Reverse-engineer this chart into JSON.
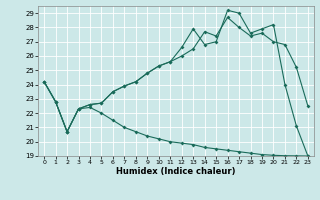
{
  "xlabel": "Humidex (Indice chaleur)",
  "background_color": "#cce8e8",
  "grid_color": "#ffffff",
  "line_color": "#1a6b5a",
  "xlim": [
    -0.5,
    23.5
  ],
  "ylim": [
    19,
    29.5
  ],
  "yticks": [
    19,
    20,
    21,
    22,
    23,
    24,
    25,
    26,
    27,
    28,
    29
  ],
  "xticks": [
    0,
    1,
    2,
    3,
    4,
    5,
    6,
    7,
    8,
    9,
    10,
    11,
    12,
    13,
    14,
    15,
    16,
    17,
    18,
    19,
    20,
    21,
    22,
    23
  ],
  "line1": [
    24.2,
    22.8,
    20.7,
    22.3,
    22.6,
    22.7,
    23.5,
    23.9,
    24.2,
    24.8,
    25.3,
    25.6,
    26.6,
    27.9,
    26.8,
    27.0,
    29.2,
    29.0,
    27.6,
    27.9,
    28.2,
    24.0,
    21.1,
    19.0
  ],
  "line2": [
    24.2,
    22.8,
    20.7,
    22.3,
    22.6,
    22.7,
    23.5,
    23.9,
    24.2,
    24.8,
    25.3,
    25.6,
    26.0,
    26.5,
    27.7,
    27.4,
    28.7,
    28.0,
    27.4,
    27.6,
    27.0,
    26.8,
    25.2,
    22.5
  ],
  "line3": [
    24.2,
    22.8,
    20.7,
    22.3,
    22.4,
    22.0,
    21.5,
    21.0,
    20.7,
    20.4,
    20.2,
    20.0,
    19.9,
    19.8,
    19.6,
    19.5,
    19.4,
    19.3,
    19.2,
    19.1,
    19.05,
    19.02,
    19.01,
    19.0
  ]
}
